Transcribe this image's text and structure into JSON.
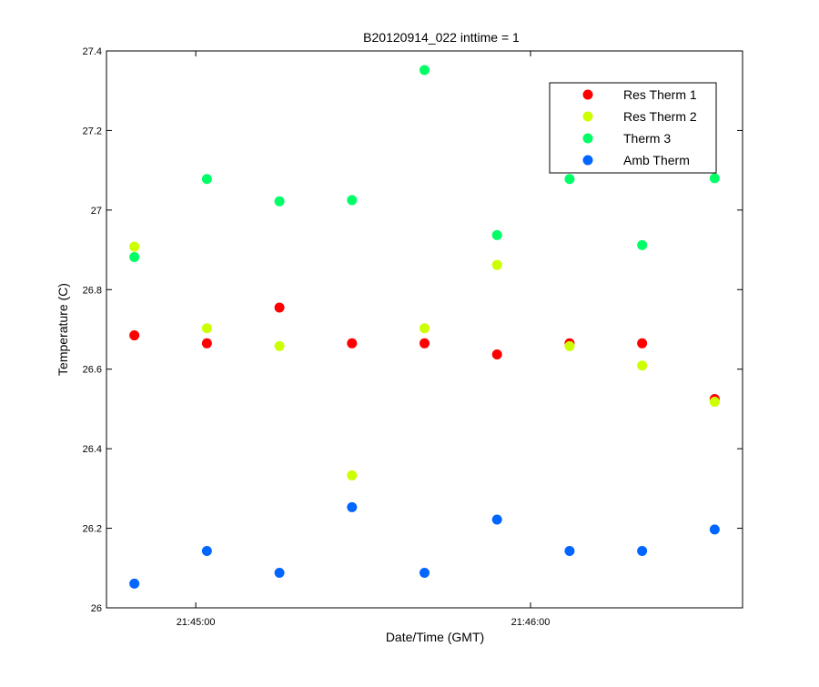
{
  "chart_data": {
    "type": "scatter",
    "title": "B20120914_022 inttime = 1",
    "xlabel": "Date/Time (GMT)",
    "ylabel": "Temperature (C)",
    "x_axis_type": "time",
    "xlim": [
      "21:44:44",
      "21:46:38"
    ],
    "ylim": [
      26,
      27.4
    ],
    "x_ticks": [
      "21:45:00",
      "21:46:00"
    ],
    "y_ticks": [
      "26",
      "26.2",
      "26.4",
      "26.6",
      "26.8",
      "27",
      "27.2",
      "27.4"
    ],
    "x": [
      "21:44:49",
      "21:45:02",
      "21:45:15",
      "21:45:28",
      "21:45:41",
      "21:45:54",
      "21:46:07",
      "21:46:20",
      "21:46:33"
    ],
    "series": [
      {
        "name": "Res Therm 1",
        "color": "#ff0000",
        "values": [
          26.685,
          26.665,
          26.755,
          26.665,
          26.665,
          26.637,
          26.665,
          26.665,
          26.525
        ]
      },
      {
        "name": "Res Therm 2",
        "color": "#ccff00",
        "values": [
          26.908,
          26.703,
          26.658,
          26.333,
          26.703,
          26.862,
          26.658,
          26.609,
          26.518
        ]
      },
      {
        "name": "Therm 3",
        "color": "#00ff66",
        "values": [
          26.882,
          27.078,
          27.022,
          27.025,
          27.352,
          26.937,
          27.078,
          26.912,
          27.08
        ]
      },
      {
        "name": "Amb Therm",
        "color": "#0066ff",
        "values": [
          26.061,
          26.143,
          26.088,
          26.253,
          26.088,
          26.222,
          26.143,
          26.143,
          26.197
        ]
      }
    ],
    "grid": false,
    "legend_position": "top-right",
    "marker": "filled-circle"
  }
}
